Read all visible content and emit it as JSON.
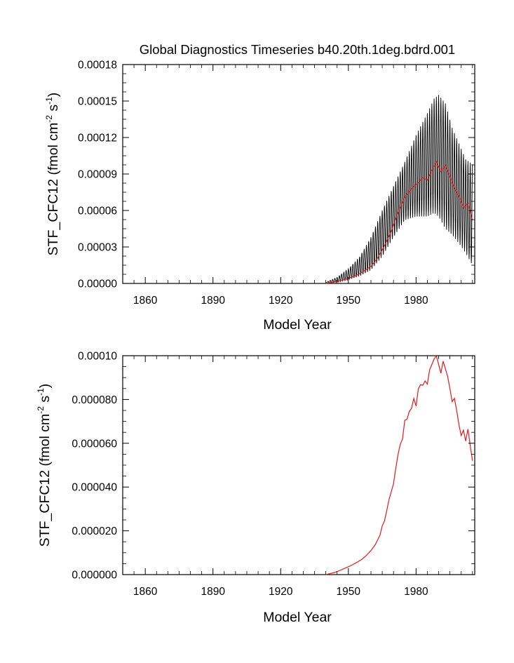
{
  "colors": {
    "monthly": "#000000",
    "annual": "#e41a1c",
    "axis": "#000000"
  },
  "chart_data": [
    {
      "type": "line",
      "title": "Global Diagnostics Timeseries b40.20th.1deg.bdrd.001",
      "xlabel": "Model Year",
      "ylabel_main": "STF_CFC12 (fmol cm",
      "ylabel_sup1": "-2",
      "ylabel_mid": " s",
      "ylabel_sup2": "-1",
      "ylabel_end": ")",
      "xlim": [
        1850,
        2006
      ],
      "ylim": [
        0,
        0.00018
      ],
      "xticks": [
        1860,
        1890,
        1920,
        1950,
        1980
      ],
      "xtick_labels": [
        "1860",
        "1890",
        "1920",
        "1950",
        "1980"
      ],
      "yticks": [
        0,
        3e-05,
        6e-05,
        9e-05,
        0.00012,
        0.00015,
        0.00018
      ],
      "ytick_labels": [
        "0.00000",
        "0.00003",
        "0.00006",
        "0.00009",
        "0.00012",
        "0.00015",
        "0.00018"
      ],
      "series": [
        {
          "name": "monthly",
          "style": "seasonal-envelope",
          "x": [
            1940,
            1945,
            1950,
            1955,
            1960,
            1965,
            1970,
            1975,
            1980,
            1985,
            1988,
            1990,
            1993,
            1996,
            1999,
            2002,
            2005
          ],
          "upper": [
            1e-06,
            5e-06,
            1.2e-05,
            2.2e-05,
            3.8e-05,
            6e-05,
            8e-05,
            0.0001,
            0.000122,
            0.00014,
            0.000152,
            0.000155,
            0.000148,
            0.000128,
            0.000115,
            0.000102,
            9.8e-05
          ],
          "lower": [
            0,
            1e-06,
            3e-06,
            6e-06,
            1.1e-05,
            2.2e-05,
            3.8e-05,
            5.2e-05,
            5.5e-05,
            5.5e-05,
            5.8e-05,
            5.5e-05,
            4.5e-05,
            4e-05,
            3.3e-05,
            2.5e-05,
            1.5e-05
          ]
        },
        {
          "name": "annual",
          "x": [
            1940,
            1945,
            1950,
            1955,
            1960,
            1963,
            1966,
            1969,
            1972,
            1975,
            1978,
            1981,
            1983,
            1985,
            1987,
            1989,
            1991,
            1993,
            1995,
            1997,
            1999,
            2001,
            2003,
            2005
          ],
          "y": [
            0,
            1.5e-06,
            4e-06,
            8e-06,
            1.4e-05,
            2.1e-05,
            3.1e-05,
            4.3e-05,
            5.8e-05,
            7.1e-05,
            7.8e-05,
            8.3e-05,
            8.7e-05,
            8.5e-05,
            9.3e-05,
            0.0001,
            9.2e-05,
            9.7e-05,
            8.8e-05,
            7.8e-05,
            7.2e-05,
            6.2e-05,
            6.6e-05,
            5.2e-05
          ]
        }
      ]
    },
    {
      "type": "line",
      "title": "",
      "xlabel": "Model Year",
      "ylabel_main": "STF_CFC12 (fmol cm",
      "ylabel_sup1": "-2",
      "ylabel_mid": " s",
      "ylabel_sup2": "-1",
      "ylabel_end": ")",
      "xlim": [
        1850,
        2006
      ],
      "ylim": [
        0,
        0.0001
      ],
      "xticks": [
        1860,
        1890,
        1920,
        1950,
        1980
      ],
      "xtick_labels": [
        "1860",
        "1890",
        "1920",
        "1950",
        "1980"
      ],
      "yticks": [
        0,
        2e-05,
        4e-05,
        6e-05,
        8e-05,
        0.0001
      ],
      "ytick_labels": [
        "0.000000",
        "0.000020",
        "0.000040",
        "0.000060",
        "0.000080",
        "0.00010"
      ],
      "series": [
        {
          "name": "annual",
          "x": [
            1940,
            1942,
            1944,
            1946,
            1948,
            1950,
            1952,
            1954,
            1956,
            1958,
            1960,
            1962,
            1964,
            1965,
            1966,
            1967,
            1968,
            1969,
            1970,
            1971,
            1972,
            1973,
            1974,
            1975,
            1976,
            1977,
            1978,
            1979,
            1980,
            1981,
            1982,
            1983,
            1984,
            1985,
            1986,
            1987,
            1988,
            1989,
            1990,
            1991,
            1992,
            1993,
            1994,
            1995,
            1996,
            1997,
            1998,
            1999,
            2000,
            2001,
            2002,
            2003,
            2004,
            2005
          ],
          "y": [
            0,
            5e-07,
            1e-06,
            1.8e-06,
            2.7e-06,
            3.6e-06,
            4.6e-06,
            5.7e-06,
            7e-06,
            8.8e-06,
            1.1e-05,
            1.38e-05,
            1.8e-05,
            2.22e-05,
            2.45e-05,
            2.92e-05,
            3.42e-05,
            3.78e-05,
            4.15e-05,
            4.85e-05,
            5.48e-05,
            5.95e-05,
            6.2e-05,
            7.05e-05,
            7.1e-05,
            7.45e-05,
            7.6e-05,
            8.05e-05,
            7.7e-05,
            8.48e-05,
            8.68e-05,
            8.65e-05,
            8.85e-05,
            8.7e-05,
            9.35e-05,
            9.6e-05,
            9.85e-05,
            0.0001,
            9.6e-05,
            9.2e-05,
            9.75e-05,
            9.4e-05,
            9.05e-05,
            8.5e-05,
            7.9e-05,
            8.05e-05,
            7.5e-05,
            6.85e-05,
            6.35e-05,
            6.6e-05,
            6.1e-05,
            6.65e-05,
            5.9e-05,
            5.2e-05
          ]
        }
      ]
    }
  ]
}
